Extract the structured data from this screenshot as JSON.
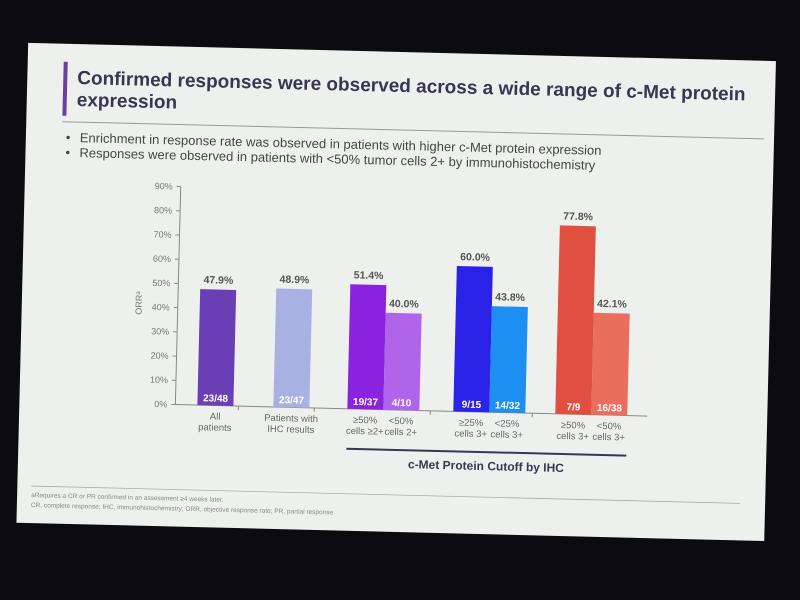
{
  "slide": {
    "title_line1": "Confirmed responses were observed across a wide range of c-Met protein",
    "title_line2": "expression",
    "bullets": [
      "Enrichment in response rate was observed in patients with higher c-Met protein expression",
      "Responses were observed in patients with <50% tumor cells 2+ by immunohistochemistry"
    ],
    "footnotes": [
      "aRequires a CR or PR confirmed in an assessment ≥4 weeks later.",
      "CR, complete response; IHC, immunohistochemistry; ORR, objective response rate; PR, partial response."
    ],
    "accent": "#6b3fa0"
  },
  "chart_data": {
    "type": "bar",
    "title": "",
    "ylabel": "ORRᵃ",
    "xlabel": "c-Met Protein Cutoff by IHC",
    "ylim": [
      0,
      90
    ],
    "yticks": [
      "0%",
      "10%",
      "20%",
      "30%",
      "40%",
      "50%",
      "60%",
      "70%",
      "80%",
      "90%"
    ],
    "categories": [
      [
        "All",
        "patients"
      ],
      [
        "Patients with",
        "IHC results"
      ],
      [
        "≥50%",
        "cells ≥2+"
      ],
      [
        "<50%",
        "cells 2+"
      ],
      [
        "≥25%",
        "cells 3+"
      ],
      [
        "<25%",
        "cells 3+"
      ],
      [
        "≥50%",
        "cells 3+"
      ],
      [
        "<50%",
        "cells 3+"
      ]
    ],
    "values": [
      47.9,
      48.9,
      51.4,
      40.0,
      60.0,
      43.8,
      77.8,
      42.1
    ],
    "value_labels": [
      "47.9%",
      "48.9%",
      "51.4%",
      "40.0%",
      "60.0%",
      "43.8%",
      "77.8%",
      "42.1%"
    ],
    "n_labels": [
      "23/48",
      "23/47",
      "19/37",
      "4/10",
      "9/15",
      "14/32",
      "7/9",
      "16/38"
    ],
    "colors": [
      "#6a3fb5",
      "#a9b1e2",
      "#8a22e0",
      "#b064ea",
      "#2a22e6",
      "#1e8ff2",
      "#e04f40",
      "#ea6e5e"
    ]
  }
}
